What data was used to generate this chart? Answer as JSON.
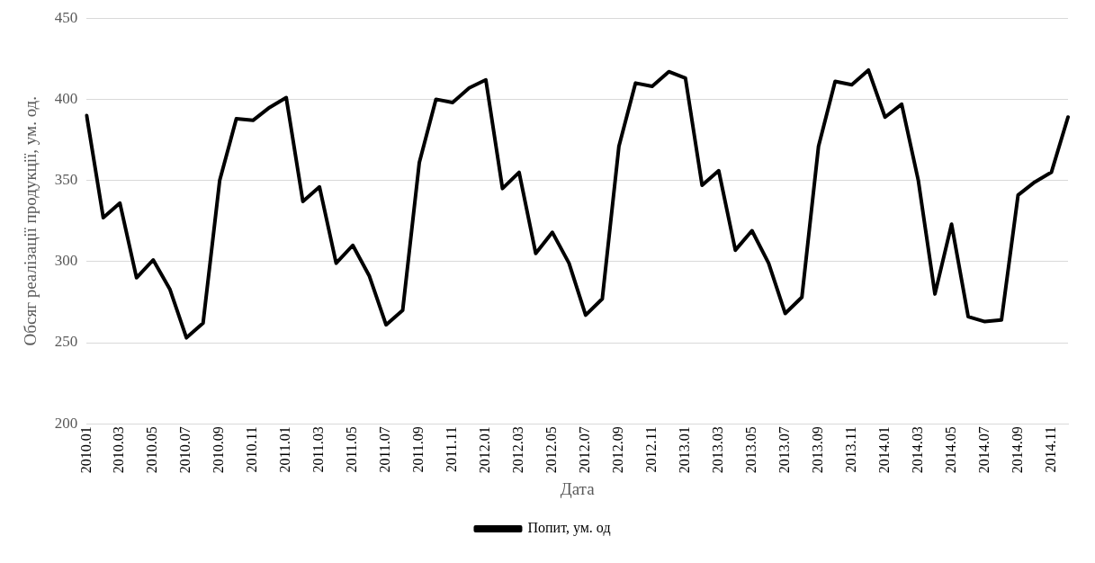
{
  "chart_data": {
    "type": "line",
    "xlabel": "Дата",
    "ylabel": "Обсяг реалізації продукції, ум. од.",
    "categories": [
      "2010.01",
      null,
      "2010.03",
      null,
      "2010.05",
      null,
      "2010.07",
      null,
      "2010.09",
      null,
      "2010.11",
      null,
      "2011.01",
      null,
      "2011.03",
      null,
      "2011.05",
      null,
      "2011.07",
      null,
      "2011.09",
      null,
      "2011.11",
      null,
      "2012.01",
      null,
      "2012.03",
      null,
      "2012.05",
      null,
      "2012.07",
      null,
      "2012.09",
      null,
      "2012.11",
      null,
      "2013.01",
      null,
      "2013.03",
      null,
      "2013.05",
      null,
      "2013.07",
      null,
      "2013.09",
      null,
      "2013.11",
      null,
      "2014.01",
      null,
      "2014.03",
      null,
      "2014.05",
      null,
      "2014.07",
      null,
      "2014.09",
      null,
      "2014.11",
      null
    ],
    "series": [
      {
        "name": "Попит, ум. од",
        "color": "#000000",
        "values": [
          390,
          327,
          336,
          290,
          301,
          283,
          253,
          262,
          350,
          388,
          387,
          395,
          401,
          337,
          346,
          299,
          310,
          291,
          261,
          270,
          361,
          400,
          398,
          407,
          412,
          345,
          355,
          305,
          318,
          299,
          267,
          277,
          371,
          410,
          408,
          417,
          413,
          347,
          356,
          307,
          319,
          299,
          268,
          278,
          371,
          411,
          409,
          418,
          389,
          397,
          350,
          280,
          323,
          266,
          263,
          264,
          341,
          349,
          355,
          389
        ]
      }
    ],
    "ylim": [
      200,
      450
    ],
    "yticks": [
      200,
      250,
      300,
      350,
      400,
      450
    ],
    "grid": "y",
    "legend": "bottom",
    "marker": "none",
    "line_style": "solid"
  }
}
